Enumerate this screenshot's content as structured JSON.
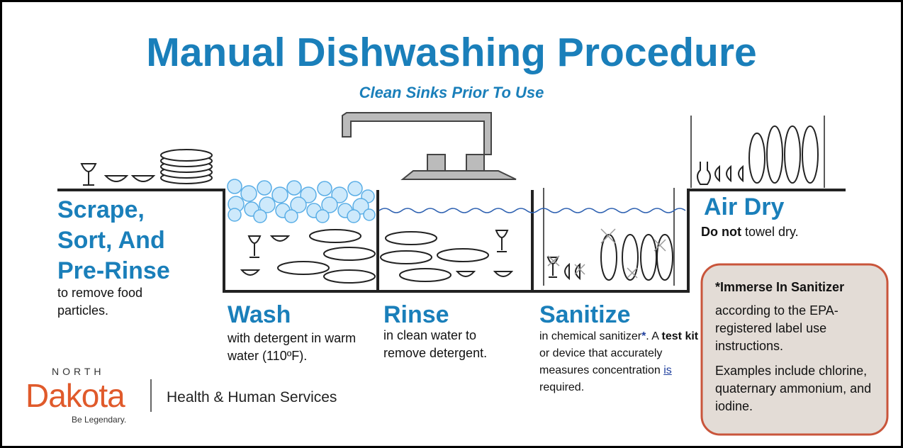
{
  "header": {
    "title": "Manual Dishwashing Procedure",
    "subtitle": "Clean Sinks Prior To Use"
  },
  "steps": {
    "scrape": {
      "heading": [
        "Scrape,",
        "Sort, And",
        "Pre-Rinse"
      ],
      "description": "to remove food particles."
    },
    "wash": {
      "heading": "Wash",
      "description": "with detergent in warm water (110ºF)."
    },
    "rinse": {
      "heading": "Rinse",
      "description": "in clean water to remove detergent."
    },
    "sanitize": {
      "heading": "Sanitize",
      "description": {
        "part1": "in chemical sanitizer",
        "star": "*",
        "part2": ". A ",
        "bold": "test kit",
        "part3": " or device that accurately measures concentration ",
        "underlined": "is",
        "part4": " required."
      }
    },
    "air_dry": {
      "heading": "Air Dry",
      "description": {
        "bold": "Do not",
        "rest": " towel dry."
      }
    }
  },
  "note": {
    "title": "*Immerse In Sanitizer",
    "lines": [
      "according to the EPA-registered label use instructions.",
      "Examples include chlorine, quaternary ammonium, and iodine."
    ]
  },
  "logo": {
    "state_top": "NORTH",
    "state_name": "Dakota",
    "tagline": "Be Legendary.",
    "department": "Health & Human Services"
  }
}
